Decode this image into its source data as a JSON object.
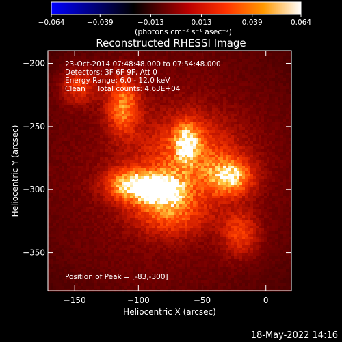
{
  "chart_data": {
    "type": "heatmap",
    "title": "Reconstructed RHESSI Image",
    "xlabel": "Heliocentric X (arcsec)",
    "ylabel": "Heliocentric Y (arcsec)",
    "xlim": [
      -171,
      20
    ],
    "ylim": [
      -380,
      -190
    ],
    "x_ticks": [
      -150,
      -100,
      -50,
      0
    ],
    "x_tick_labels": [
      "−150",
      "−100",
      "−50",
      "0"
    ],
    "y_ticks": [
      -200,
      -250,
      -300,
      -350
    ],
    "y_tick_labels": [
      "−200",
      "−250",
      "−300",
      "−350"
    ],
    "colorbar": {
      "range": [
        -0.064,
        0.064
      ],
      "ticks": [
        -0.064,
        -0.039,
        -0.013,
        0.013,
        0.039,
        0.064
      ],
      "tick_labels": [
        "−0.064",
        "−0.039",
        "−0.013",
        "0.013",
        "0.039",
        "0.064"
      ],
      "units": "(photons cm⁻² s⁻¹ asec⁻²)",
      "colors": [
        "#0000ff",
        "#000000",
        "#bb0000",
        "#ff3300",
        "#ff9900",
        "#ffffff"
      ]
    },
    "annotations": [
      "23-Oct-2014 07:48:48.000 to 07:54:48.000",
      "Detectors: 3F 6F 9F, Att 0",
      "Energy Range: 6.0 - 12.0 keV",
      "Clean     Total counts: 4.63E+04"
    ],
    "peak_label": "Position of Peak = [-83,-300]",
    "peak": [
      -83,
      -300
    ],
    "sources": [
      {
        "x": -83,
        "y": -300,
        "intensity": 0.064,
        "sx": 14,
        "sy": 9
      },
      {
        "x": -108,
        "y": -296,
        "intensity": 0.05,
        "sx": 13,
        "sy": 9
      },
      {
        "x": -28,
        "y": -290,
        "intensity": 0.052,
        "sx": 12,
        "sy": 10
      },
      {
        "x": -112,
        "y": -233,
        "intensity": 0.045,
        "sx": 9,
        "sy": 16
      },
      {
        "x": -62,
        "y": -262,
        "intensity": 0.042,
        "sx": 7,
        "sy": 11
      },
      {
        "x": -147,
        "y": -218,
        "intensity": 0.03,
        "sx": 10,
        "sy": 10
      },
      {
        "x": -20,
        "y": -335,
        "intensity": 0.03,
        "sx": 10,
        "sy": 12
      },
      {
        "x": -75,
        "y": -320,
        "intensity": 0.032,
        "sx": 20,
        "sy": 12
      },
      {
        "x": -60,
        "y": -275,
        "intensity": 0.035,
        "sx": 26,
        "sy": 22
      }
    ],
    "background_level": 0.018
  },
  "footer": {
    "date": "18-May-2022 14:16"
  }
}
